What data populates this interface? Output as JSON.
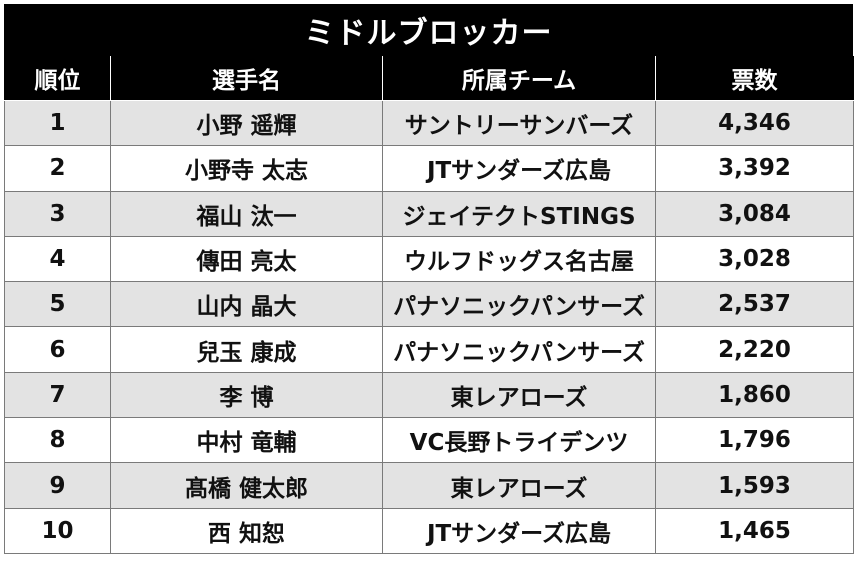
{
  "title": "ミドルブロッカー",
  "headers": [
    "順位",
    "選手名",
    "所属チーム",
    "票数"
  ],
  "rows": [
    {
      "rank": "1",
      "name": "小野 遥輝",
      "team": "サントリーサンバーズ",
      "votes": "4,346"
    },
    {
      "rank": "2",
      "name": "小野寺 太志",
      "team": "JTサンダーズ広島",
      "votes": "3,392"
    },
    {
      "rank": "3",
      "name": "福山 汰一",
      "team": "ジェイテクトSTINGS",
      "votes": "3,084"
    },
    {
      "rank": "4",
      "name": "傳田 亮太",
      "team": "ウルフドッグス名古屋",
      "votes": "3,028"
    },
    {
      "rank": "5",
      "name": "山内 晶大",
      "team": "パナソニックパンサーズ",
      "votes": "2,537"
    },
    {
      "rank": "6",
      "name": "兒玉 康成",
      "team": "パナソニックパンサーズ",
      "votes": "2,220"
    },
    {
      "rank": "7",
      "name": "李 博",
      "team": "東レアローズ",
      "votes": "1,860"
    },
    {
      "rank": "8",
      "name": "中村 竜輔",
      "team": "VC長野トライデンツ",
      "votes": "1,796"
    },
    {
      "rank": "9",
      "name": "髙橋 健太郎",
      "team": "東レアローズ",
      "votes": "1,593"
    },
    {
      "rank": "10",
      "name": "西 知恕",
      "team": "JTサンダーズ広島",
      "votes": "1,465"
    }
  ]
}
